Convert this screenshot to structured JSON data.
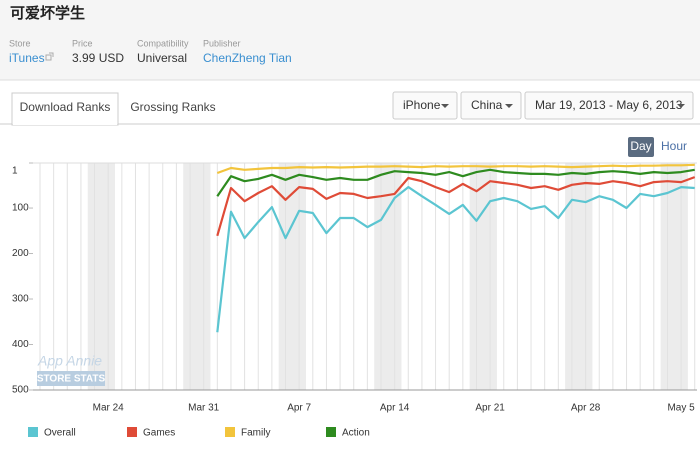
{
  "header": {
    "title": "可爱坏学生"
  },
  "meta": [
    {
      "label": "Store",
      "value": "iTunes"
    },
    {
      "label": "Price",
      "value": "3.99 USD"
    },
    {
      "label": "Compatibility",
      "value": "Universal"
    },
    {
      "label": "Publisher",
      "value": "ChenZheng Tian"
    }
  ],
  "tabs": [
    "Download Ranks",
    "Grossing Ranks"
  ],
  "filters": [
    "iPhone",
    "China",
    "Mar 19, 2013 - May 6, 2013"
  ],
  "granularity": [
    "Day",
    "Hour"
  ],
  "watermark": [
    "App Annie",
    "STORE STATS"
  ],
  "chart_data": {
    "type": "line",
    "categories": [
      null,
      null,
      null,
      null,
      null,
      "Mar 24",
      null,
      null,
      null,
      null,
      null,
      null,
      "Mar 31",
      null,
      null,
      null,
      null,
      null,
      null,
      "Apr 7",
      null,
      null,
      null,
      null,
      null,
      null,
      "Apr 14",
      null,
      null,
      null,
      null,
      null,
      null,
      "Apr 21",
      null,
      null,
      null,
      null,
      null,
      null,
      "Apr 28",
      null,
      null,
      null,
      null,
      null,
      null,
      "May 5",
      null
    ],
    "series": [
      {
        "name": "Overall",
        "color": "#5bc5d1",
        "values": [
          null,
          null,
          null,
          null,
          null,
          null,
          null,
          null,
          null,
          null,
          null,
          null,
          null,
          373,
          108,
          166,
          131,
          98,
          166,
          106,
          111,
          155,
          122,
          122,
          142,
          126,
          78,
          54,
          74,
          93,
          113,
          93,
          128,
          85,
          78,
          85,
          102,
          96,
          122,
          82,
          87,
          74,
          82,
          100,
          69,
          74,
          67,
          54,
          56
        ]
      },
      {
        "name": "Games",
        "color": "#df4b37",
        "values": [
          null,
          null,
          null,
          null,
          null,
          null,
          null,
          null,
          null,
          null,
          null,
          null,
          null,
          161,
          56,
          85,
          67,
          52,
          82,
          54,
          58,
          80,
          67,
          69,
          78,
          74,
          69,
          34,
          41,
          54,
          65,
          47,
          63,
          41,
          45,
          49,
          56,
          52,
          60,
          49,
          45,
          47,
          41,
          45,
          52,
          43,
          41,
          43,
          32
        ]
      },
      {
        "name": "Family",
        "color": "#f2c43c",
        "values": [
          null,
          null,
          null,
          null,
          null,
          null,
          null,
          null,
          null,
          null,
          null,
          null,
          null,
          23,
          12,
          16,
          14,
          12,
          12,
          10,
          11,
          10,
          11,
          10,
          9,
          9,
          8,
          9,
          10,
          8,
          9,
          8,
          8,
          9,
          8,
          8,
          9,
          8,
          9,
          10,
          9,
          8,
          7,
          8,
          7,
          7,
          6,
          6,
          5
        ]
      },
      {
        "name": "Action",
        "color": "#2e8b1f",
        "values": [
          null,
          null,
          null,
          null,
          null,
          null,
          null,
          null,
          null,
          null,
          null,
          null,
          null,
          74,
          30,
          41,
          36,
          27,
          38,
          27,
          32,
          38,
          34,
          38,
          38,
          27,
          19,
          21,
          23,
          27,
          21,
          30,
          21,
          16,
          21,
          23,
          25,
          25,
          27,
          23,
          25,
          21,
          19,
          21,
          25,
          21,
          23,
          21,
          16
        ]
      }
    ],
    "ylim": [
      500,
      1
    ],
    "yticks": [
      1,
      100,
      200,
      300,
      400,
      500
    ],
    "grid": true
  }
}
